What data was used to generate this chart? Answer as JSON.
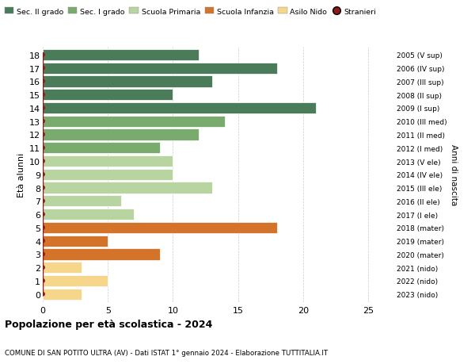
{
  "ages": [
    18,
    17,
    16,
    15,
    14,
    13,
    12,
    11,
    10,
    9,
    8,
    7,
    6,
    5,
    4,
    3,
    2,
    1,
    0
  ],
  "right_labels": [
    "2005 (V sup)",
    "2006 (IV sup)",
    "2007 (III sup)",
    "2008 (II sup)",
    "2009 (I sup)",
    "2010 (III med)",
    "2011 (II med)",
    "2012 (I med)",
    "2013 (V ele)",
    "2014 (IV ele)",
    "2015 (III ele)",
    "2016 (II ele)",
    "2017 (I ele)",
    "2018 (mater)",
    "2019 (mater)",
    "2020 (mater)",
    "2021 (nido)",
    "2022 (nido)",
    "2023 (nido)"
  ],
  "bar_values": [
    12,
    18,
    13,
    10,
    21,
    14,
    12,
    9,
    10,
    10,
    13,
    6,
    7,
    18,
    5,
    9,
    3,
    5,
    3
  ],
  "bar_colors": [
    "#4a7c59",
    "#4a7c59",
    "#4a7c59",
    "#4a7c59",
    "#4a7c59",
    "#7aab6e",
    "#7aab6e",
    "#7aab6e",
    "#b8d4a0",
    "#b8d4a0",
    "#b8d4a0",
    "#b8d4a0",
    "#b8d4a0",
    "#d4732a",
    "#d4732a",
    "#d4732a",
    "#f5d68a",
    "#f5d68a",
    "#f5d68a"
  ],
  "stranieri_values": [
    0,
    0,
    0,
    0,
    0,
    0,
    0,
    1,
    0,
    0,
    0,
    0,
    0,
    1,
    0,
    0,
    0,
    0,
    0
  ],
  "xlim": [
    0,
    27
  ],
  "xticks": [
    0,
    5,
    10,
    15,
    20,
    25
  ],
  "ylabel": "Età alunni",
  "right_ylabel": "Anni di nascita",
  "title": "Popolazione per età scolastica - 2024",
  "subtitle": "COMUNE DI SAN POTITO ULTRA (AV) - Dati ISTAT 1° gennaio 2024 - Elaborazione TUTTITALIA.IT",
  "legend_items": [
    {
      "label": "Sec. II grado",
      "color": "#4a7c59"
    },
    {
      "label": "Sec. I grado",
      "color": "#7aab6e"
    },
    {
      "label": "Scuola Primaria",
      "color": "#b8d4a0"
    },
    {
      "label": "Scuola Infanzia",
      "color": "#d4732a"
    },
    {
      "label": "Asilo Nido",
      "color": "#f5d68a"
    },
    {
      "label": "Stranieri",
      "color": "#8b1a1a"
    }
  ],
  "bg_color": "#ffffff",
  "grid_color": "#cccccc",
  "bar_height": 0.85,
  "stranieri_dot_color": "#8b1a1a",
  "stranieri_line_color": "#8b1a1a"
}
